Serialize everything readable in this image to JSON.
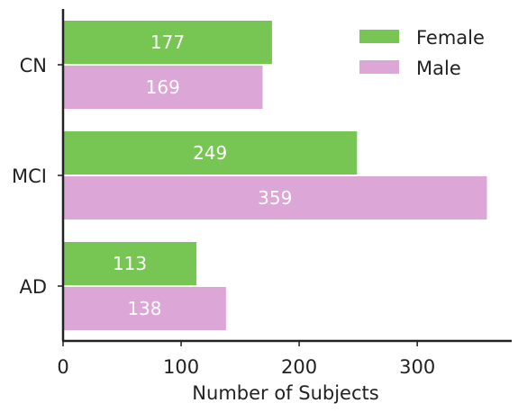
{
  "chart_data": {
    "type": "bar",
    "orientation": "horizontal",
    "categories": [
      "CN",
      "MCI",
      "AD"
    ],
    "series": [
      {
        "name": "Female",
        "values": [
          177,
          249,
          113
        ],
        "color": "#77c653"
      },
      {
        "name": "Male",
        "values": [
          169,
          359,
          138
        ],
        "color": "#dca6d6"
      }
    ],
    "xlabel": "Number of Subjects",
    "ylabel": "",
    "title": "",
    "xlim": [
      0,
      380
    ],
    "xticks": [
      0,
      100,
      200,
      300
    ],
    "grid": false,
    "legend_position": "top-right",
    "data_labels": true
  }
}
